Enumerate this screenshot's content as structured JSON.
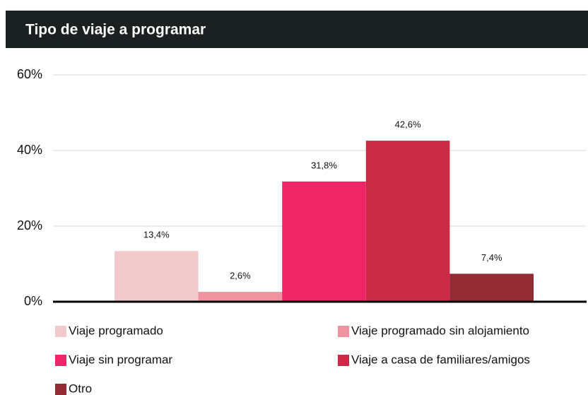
{
  "chart_data": {
    "type": "bar",
    "title": "Tipo de viaje a programar",
    "categories": [
      null
    ],
    "series": [
      {
        "name": "Viaje programado",
        "color": "#f2c9cc",
        "values": [
          13.4
        ],
        "value_labels": [
          "13,4%"
        ]
      },
      {
        "name": "Viaje programado sin alojamiento",
        "color": "#f0929f",
        "values": [
          2.6
        ],
        "value_labels": [
          "2,6%"
        ]
      },
      {
        "name": "Viaje sin programar",
        "color": "#ee2566",
        "values": [
          31.8
        ],
        "value_labels": [
          "31,8%"
        ]
      },
      {
        "name": "Viaje a casa de familiares/amigos",
        "color": "#cc2b48",
        "values": [
          42.6
        ],
        "value_labels": [
          "42,6%"
        ]
      },
      {
        "name": "Otro",
        "color": "#922b33",
        "values": [
          7.4
        ],
        "value_labels": [
          "7,4%"
        ]
      }
    ],
    "ylim": [
      0,
      60
    ],
    "yticks": [
      {
        "value": 0,
        "label": "0%"
      },
      {
        "value": 20,
        "label": "20%"
      },
      {
        "value": 40,
        "label": "40%"
      },
      {
        "value": 60,
        "label": "60%"
      }
    ],
    "grid": true,
    "legend": "bottom"
  }
}
